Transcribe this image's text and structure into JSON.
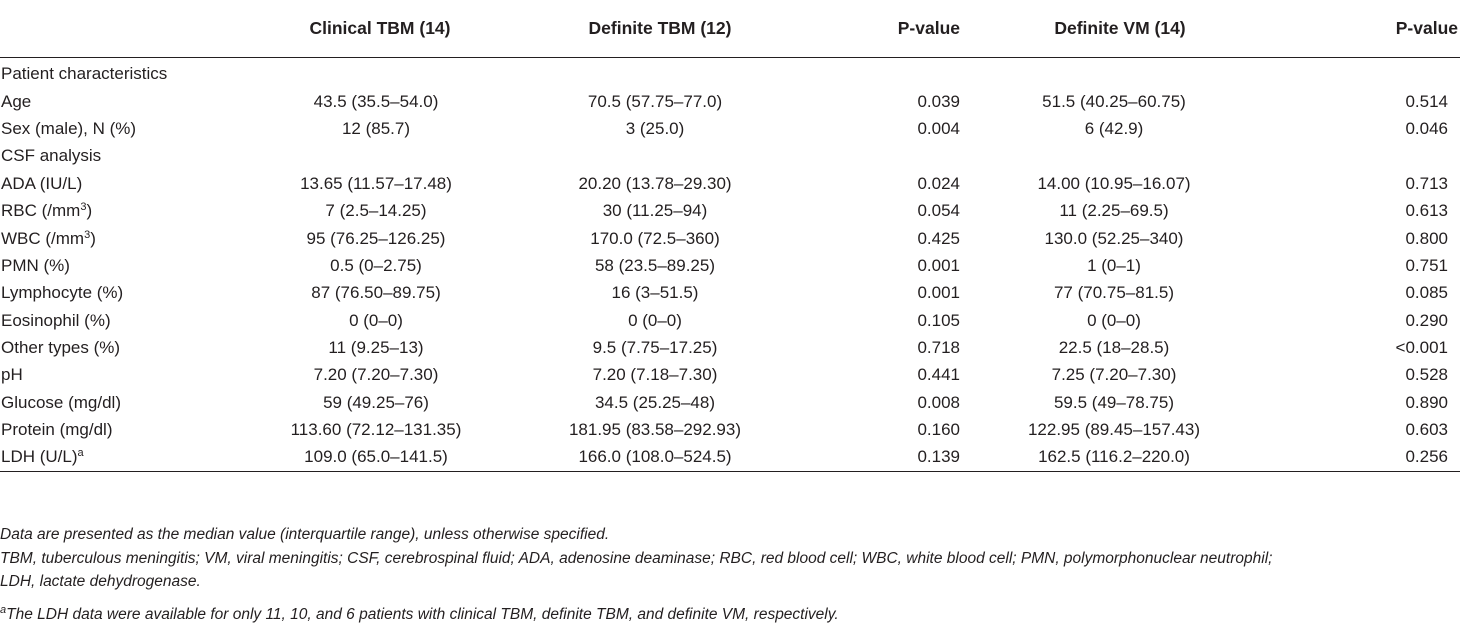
{
  "table": {
    "headers": [
      "",
      "Clinical TBM (14)",
      "Definite TBM (12)",
      "P-value",
      "Definite VM (14)",
      "P-value"
    ],
    "rows": [
      {
        "type": "section",
        "label": "Patient characteristics"
      },
      {
        "type": "data",
        "label": "Age",
        "values": [
          "43.5 (35.5–54.0)",
          "70.5 (57.75–77.0)",
          "0.039",
          "51.5 (40.25–60.75)",
          "0.514"
        ]
      },
      {
        "type": "data",
        "label": "Sex (male), N (%)",
        "values": [
          "12 (85.7)",
          "3 (25.0)",
          "0.004",
          "6 (42.9)",
          "0.046"
        ]
      },
      {
        "type": "section",
        "label": "CSF analysis"
      },
      {
        "type": "data",
        "label": "ADA (IU/L)",
        "values": [
          "13.65 (11.57–17.48)",
          "20.20 (13.78–29.30)",
          "0.024",
          "14.00 (10.95–16.07)",
          "0.713"
        ]
      },
      {
        "type": "data",
        "label": "RBC (/mm",
        "sup": "3",
        "label_after": ")",
        "values": [
          "7 (2.5–14.25)",
          "30 (11.25–94)",
          "0.054",
          "11 (2.25–69.5)",
          "0.613"
        ]
      },
      {
        "type": "data",
        "label": "WBC (/mm",
        "sup": "3",
        "label_after": ")",
        "values": [
          "95 (76.25–126.25)",
          "170.0 (72.5–360)",
          "0.425",
          "130.0 (52.25–340)",
          "0.800"
        ]
      },
      {
        "type": "data",
        "label": "PMN (%)",
        "values": [
          "0.5 (0–2.75)",
          "58 (23.5–89.25)",
          "0.001",
          "1 (0–1)",
          "0.751"
        ]
      },
      {
        "type": "data",
        "label": "Lymphocyte (%)",
        "values": [
          "87 (76.50–89.75)",
          "16 (3–51.5)",
          "0.001",
          "77 (70.75–81.5)",
          "0.085"
        ]
      },
      {
        "type": "data",
        "label": "Eosinophil (%)",
        "values": [
          "0 (0–0)",
          "0 (0–0)",
          "0.105",
          "0 (0–0)",
          "0.290"
        ]
      },
      {
        "type": "data",
        "label": "Other types (%)",
        "values": [
          "11 (9.25–13)",
          "9.5 (7.75–17.25)",
          "0.718",
          "22.5 (18–28.5)",
          "<0.001"
        ]
      },
      {
        "type": "data",
        "label": "pH",
        "values": [
          "7.20 (7.20–7.30)",
          "7.20 (7.18–7.30)",
          "0.441",
          "7.25 (7.20–7.30)",
          "0.528"
        ]
      },
      {
        "type": "data",
        "label": "Glucose (mg/dl)",
        "values": [
          "59 (49.25–76)",
          "34.5 (25.25–48)",
          "0.008",
          "59.5 (49–78.75)",
          "0.890"
        ]
      },
      {
        "type": "data",
        "label": "Protein (mg/dl)",
        "values": [
          "113.60 (72.12–131.35)",
          "181.95 (83.58–292.93)",
          "0.160",
          "122.95 (89.45–157.43)",
          "0.603"
        ]
      },
      {
        "type": "data",
        "label": "LDH (U/L)",
        "sup": "a",
        "label_after": "",
        "values": [
          "109.0 (65.0–141.5)",
          "166.0 (108.0–524.5)",
          "0.139",
          "162.5 (116.2–220.0)",
          "0.256"
        ]
      }
    ]
  },
  "notes": {
    "note1": "Data are presented as the median value (interquartile range), unless otherwise specified.",
    "note2_line1": "TBM, tuberculous meningitis; VM, viral meningitis; CSF, cerebrospinal fluid; ADA, adenosine deaminase; RBC, red blood cell; WBC, white blood cell; PMN, polymorphonuclear neutrophil;",
    "note2_line2": "LDH, lactate dehydrogenase.",
    "note3_sup": "a",
    "note3": "The LDH data were available for only 11, 10, and 6 patients with clinical TBM, definite TBM, and definite VM, respectively."
  }
}
